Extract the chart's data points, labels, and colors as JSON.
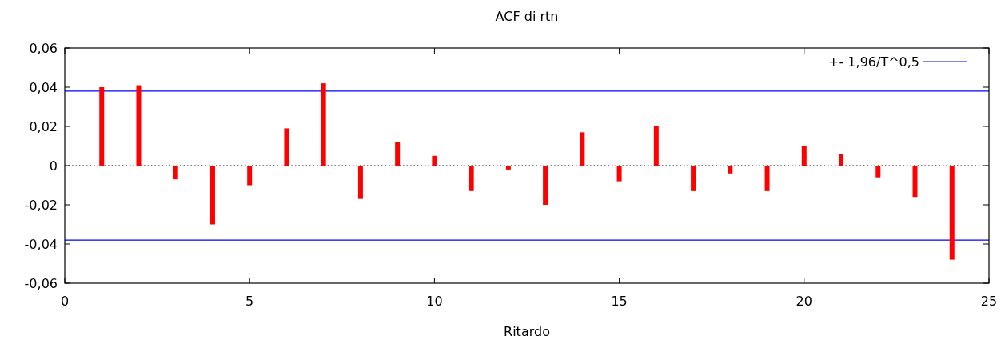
{
  "chart_data": {
    "type": "bar",
    "title": "ACF di rtn",
    "xlabel": "Ritardo",
    "x": [
      1,
      2,
      3,
      4,
      5,
      6,
      7,
      8,
      9,
      10,
      11,
      12,
      13,
      14,
      15,
      16,
      17,
      18,
      19,
      20,
      21,
      22,
      23,
      24
    ],
    "values": [
      0.04,
      0.041,
      -0.007,
      -0.03,
      -0.01,
      0.019,
      0.042,
      -0.017,
      0.012,
      0.005,
      -0.013,
      -0.002,
      -0.02,
      0.017,
      -0.008,
      0.02,
      -0.013,
      -0.004,
      -0.013,
      0.01,
      0.006,
      -0.006,
      -0.016,
      -0.048
    ],
    "color": "#ff0000",
    "xlim": [
      0,
      25
    ],
    "xticks": [
      0,
      5,
      10,
      15,
      20,
      25
    ],
    "ylim": [
      -0.06,
      0.06
    ],
    "yticks": [
      {
        "value": -0.06,
        "label": "-0,06"
      },
      {
        "value": -0.04,
        "label": "-0,04"
      },
      {
        "value": -0.02,
        "label": "-0,02"
      },
      {
        "value": 0,
        "label": "0"
      },
      {
        "value": 0.02,
        "label": "0,02"
      },
      {
        "value": 0.04,
        "label": "0,04"
      },
      {
        "value": 0.06,
        "label": "0,06"
      }
    ],
    "ref_lines": [
      {
        "axis": "y",
        "value": 0.038,
        "label": "+- 1,96/T^0,5",
        "color": "#0000ff",
        "line_style": "solid"
      },
      {
        "axis": "y",
        "value": -0.038,
        "color": "#0000ff",
        "line_style": "solid"
      },
      {
        "axis": "y",
        "value": 0,
        "color": "#000000",
        "line_style": "dotted"
      }
    ],
    "legend": "top right",
    "grid": false
  }
}
